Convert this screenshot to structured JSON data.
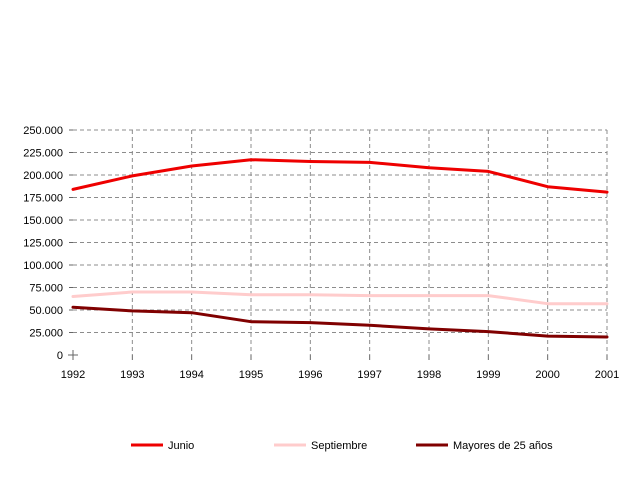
{
  "chart_data": {
    "type": "line",
    "title": "",
    "xlabel": "",
    "ylabel": "",
    "categories": [
      "1992",
      "1993",
      "1994",
      "1995",
      "1996",
      "1997",
      "1998",
      "1999",
      "2000",
      "2001"
    ],
    "y_ticks": [
      "0",
      "25.000",
      "50.000",
      "75.000",
      "100.000",
      "125.000",
      "150.000",
      "175.000",
      "200.000",
      "225.000",
      "250.000"
    ],
    "ylim": [
      0,
      250000
    ],
    "grid": true,
    "legend_position": "bottom",
    "series": [
      {
        "name": "Junio",
        "color": "#ee0000",
        "values": [
          184000,
          199000,
          210000,
          217000,
          215000,
          214000,
          208000,
          204000,
          187000,
          181000
        ]
      },
      {
        "name": "Septiembre",
        "color": "#ffcccc",
        "values": [
          65000,
          70000,
          70000,
          67000,
          67000,
          66000,
          66000,
          66000,
          57000,
          57000
        ]
      },
      {
        "name": "Mayores de 25 años",
        "color": "#800000",
        "values": [
          53000,
          49000,
          47000,
          37000,
          36000,
          33000,
          29000,
          26000,
          21000,
          20000
        ]
      }
    ]
  }
}
